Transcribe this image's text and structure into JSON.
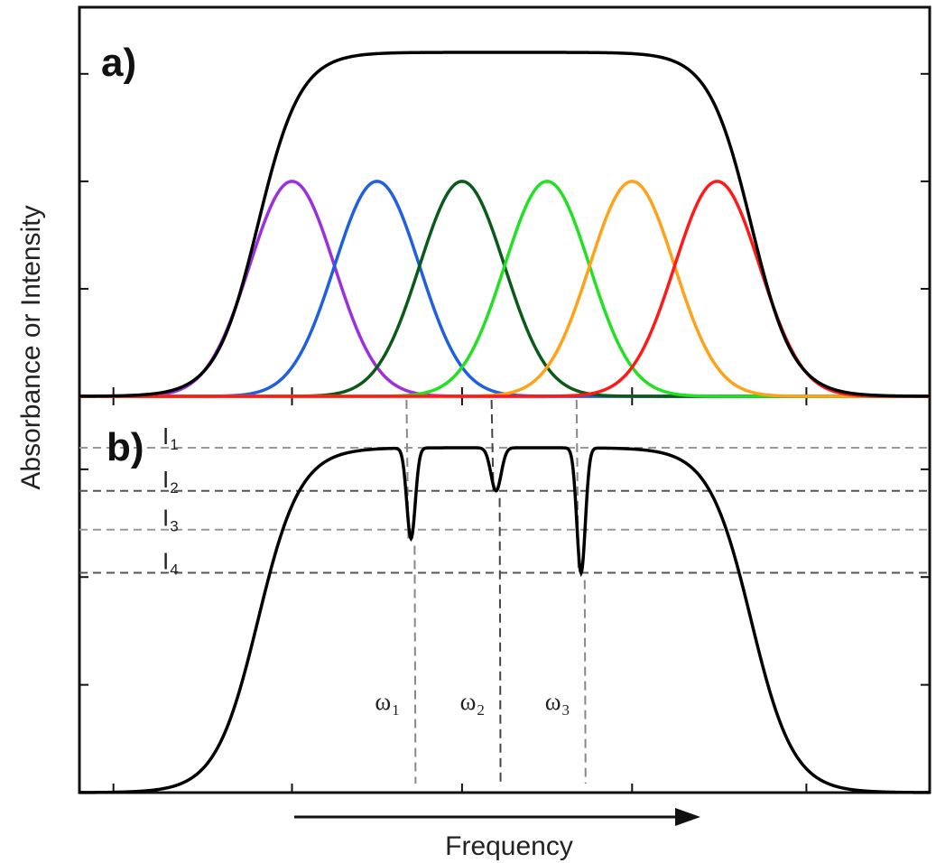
{
  "chart_data": [
    {
      "panel": "a)",
      "type": "line",
      "ylabel": "Absorbance or Intensity",
      "xlabel": "Frequency",
      "x_range": [
        0,
        10
      ],
      "y_range": [
        0,
        1.6
      ],
      "envelope": {
        "color": "#000000",
        "plateau": 1.6,
        "rise_center": 2.1,
        "fall_center": 7.9,
        "edge_width": 0.55
      },
      "series": [
        {
          "color": "#9b30e0",
          "center": 2.5,
          "peak": 1.0,
          "width": 0.5
        },
        {
          "color": "#1f5fe0",
          "center": 3.5,
          "peak": 1.0,
          "width": 0.5
        },
        {
          "color": "#0a5a1a",
          "center": 4.5,
          "peak": 1.0,
          "width": 0.5
        },
        {
          "color": "#22e022",
          "center": 5.5,
          "peak": 1.0,
          "width": 0.5
        },
        {
          "color": "#ffa21a",
          "center": 6.5,
          "peak": 1.0,
          "width": 0.5
        },
        {
          "color": "#ff1a1a",
          "center": 7.5,
          "peak": 1.0,
          "width": 0.5
        }
      ],
      "grid": false
    },
    {
      "panel": "b)",
      "type": "line",
      "x_range": [
        0,
        10
      ],
      "y_range": [
        0,
        1.6
      ],
      "envelope": {
        "color": "#000000",
        "plateau": 1.6,
        "rise_center": 2.1,
        "fall_center": 7.9,
        "edge_width": 0.55
      },
      "dips": [
        {
          "label": "ω",
          "subscript": "1",
          "x": 3.9,
          "depth": 0.42,
          "width": 0.05
        },
        {
          "label": "ω",
          "subscript": "2",
          "x": 4.9,
          "depth": 0.2,
          "width": 0.06
        },
        {
          "label": "ω",
          "subscript": "3",
          "x": 5.9,
          "depth": 0.58,
          "width": 0.05
        }
      ],
      "levels": [
        {
          "label": "I",
          "subscript": "1",
          "value": 1.6
        },
        {
          "label": "I",
          "subscript": "2",
          "value": 1.4
        },
        {
          "label": "I",
          "subscript": "3",
          "value": 1.22
        },
        {
          "label": "I",
          "subscript": "4",
          "value": 1.02
        }
      ],
      "grid": false
    }
  ]
}
